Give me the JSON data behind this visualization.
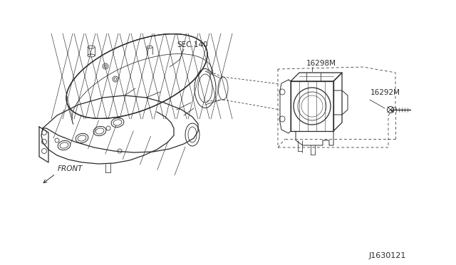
{
  "bg_color": "#ffffff",
  "line_color": "#2a2a2a",
  "label_sec140": "SEC.140",
  "label_16298m": "16298M",
  "label_16292m": "16292M",
  "label_front": "FRONT",
  "label_diagram_id": "J1630121",
  "fig_width": 6.4,
  "fig_height": 3.72,
  "dpi": 100
}
